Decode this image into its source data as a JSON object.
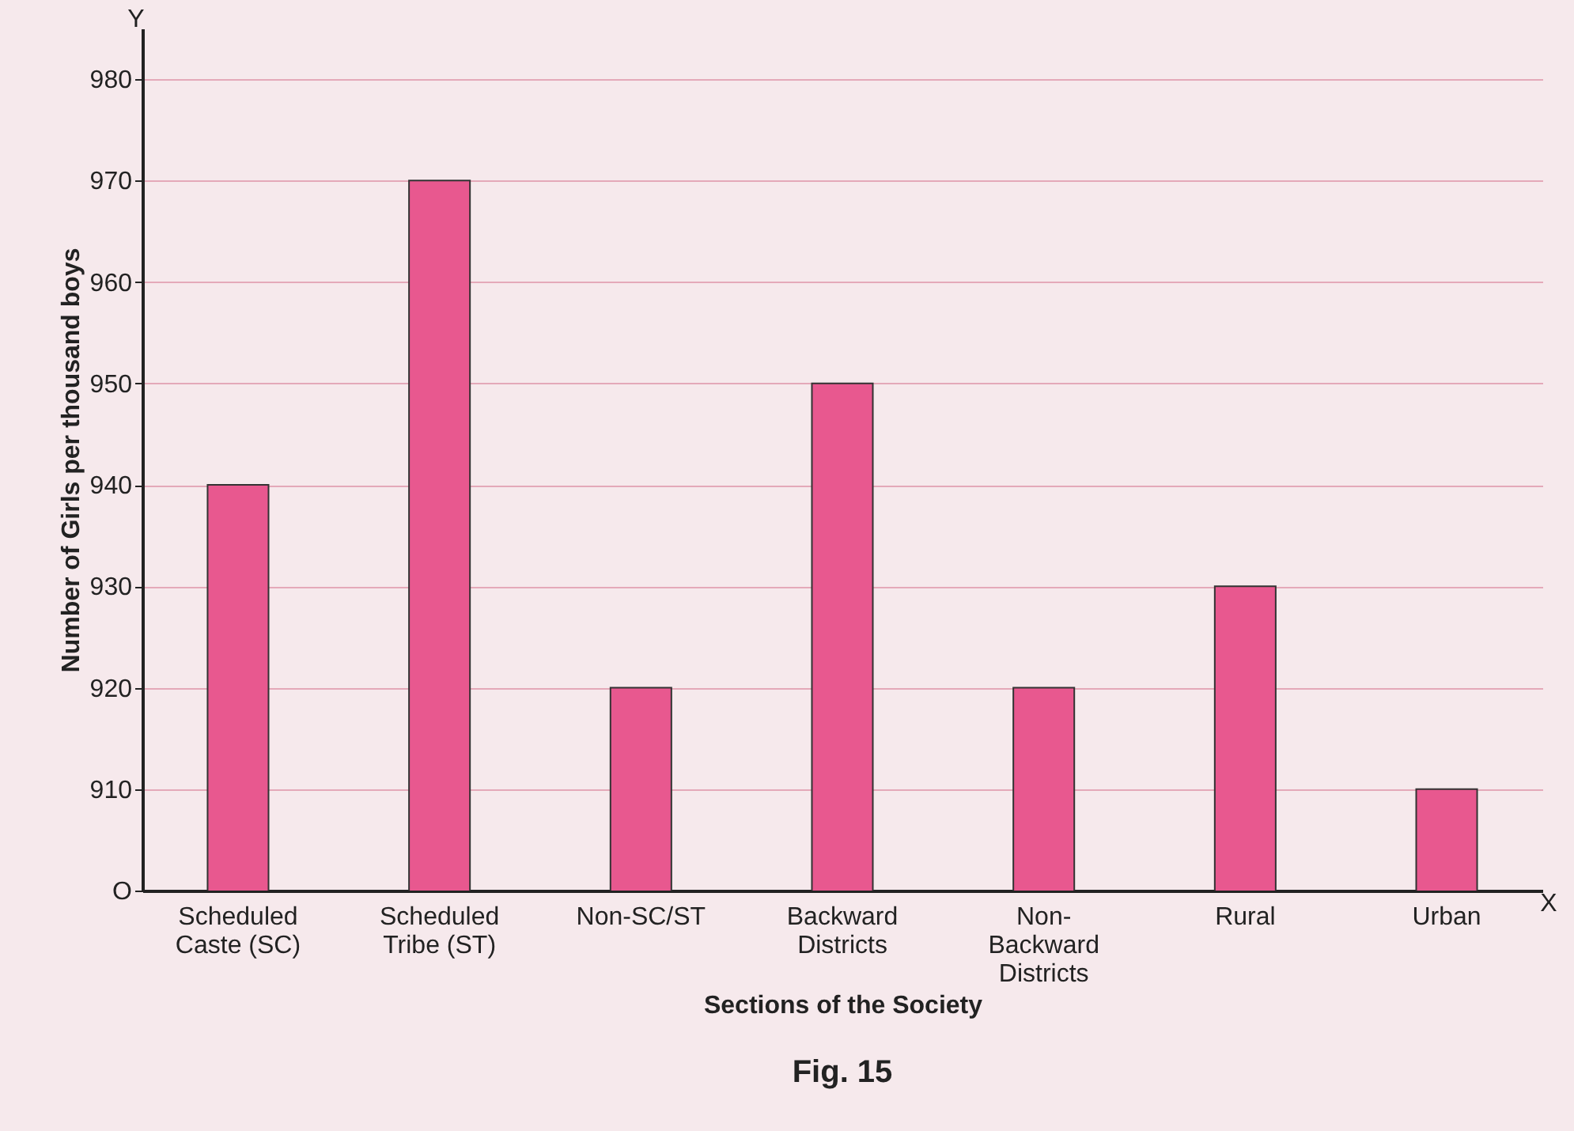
{
  "chart_data": {
    "type": "bar",
    "title": "Fig. 15",
    "xlabel": "Sections of the Society",
    "ylabel": "Number of Girls per thousand boys",
    "categories": [
      "Scheduled\nCaste (SC)",
      "Scheduled\nTribe (ST)",
      "Non-SC/ST",
      "Backward\nDistricts",
      "Non-\nBackward\nDistricts",
      "Rural",
      "Urban"
    ],
    "values": [
      940,
      970,
      920,
      950,
      920,
      930,
      910
    ],
    "color": "#e8588f",
    "ylim": [
      900,
      985
    ],
    "yticks": [
      {
        "value": 900,
        "label": "O"
      },
      910,
      920,
      930,
      940,
      950,
      960,
      970,
      980
    ],
    "grid": "y",
    "annotations": [
      "Y",
      "X"
    ]
  }
}
